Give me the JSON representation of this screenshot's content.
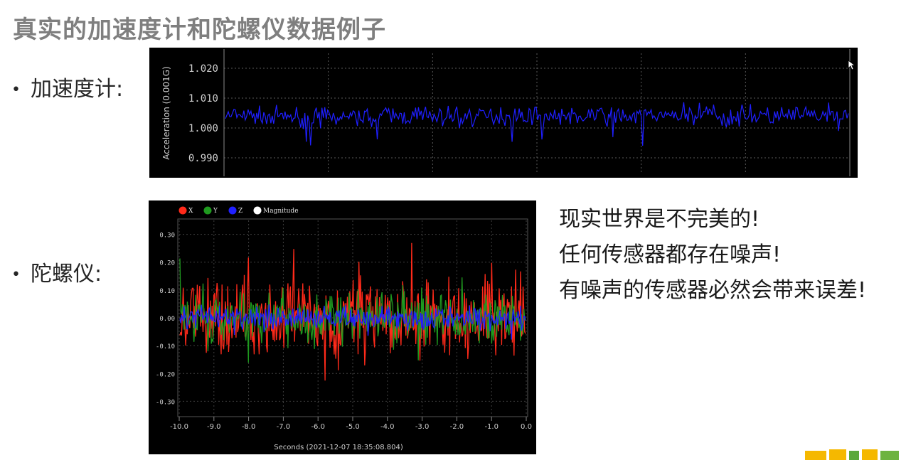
{
  "slide": {
    "title": "真实的加速度计和陀螺仪数据例子",
    "bullets": {
      "accelerometer": "加速度计:",
      "gyroscope": "陀螺仪:"
    },
    "notes": [
      "现实世界是不完美的!",
      "任何传感器都存在噪声!",
      "有噪声的传感器必然会带来误差!"
    ]
  },
  "chart_data": [
    {
      "type": "line",
      "ylabel": "Acceleration (0.001G)",
      "ylim": [
        0.985,
        1.025
      ],
      "yticks": [
        "1.020",
        "1.010",
        "1.000",
        "0.990"
      ],
      "grid": true,
      "series": [
        {
          "color": "#1f1fff",
          "mean": 1.004,
          "noise_amplitude": 0.0045,
          "samples": 440
        }
      ]
    },
    {
      "type": "line",
      "xlabel": "Seconds (2021-12-07 18:35:08.804)",
      "xlim": [
        -10.0,
        0.0
      ],
      "ylim": [
        -0.35,
        0.35
      ],
      "xticks": [
        "-10.0",
        "-9.0",
        "-8.0",
        "-7.0",
        "-6.0",
        "-5.0",
        "-4.0",
        "-3.0",
        "-2.0",
        "-1.0",
        "0.0"
      ],
      "yticks": [
        "0.30",
        "0.20",
        "0.10",
        "0.00",
        "-0.10",
        "-0.20",
        "-0.30"
      ],
      "grid": true,
      "legend_position": "top-left",
      "series": [
        {
          "name": "X",
          "color": "#ff2a1a",
          "noise_amplitude": 0.2,
          "samples": 420
        },
        {
          "name": "Y",
          "color": "#1f9a1f",
          "noise_amplitude": 0.13,
          "samples": 420
        },
        {
          "name": "Z",
          "color": "#2020ff",
          "noise_amplitude": 0.06,
          "samples": 420
        },
        {
          "name": "Magnitude",
          "color": "#ffffff"
        }
      ]
    }
  ]
}
